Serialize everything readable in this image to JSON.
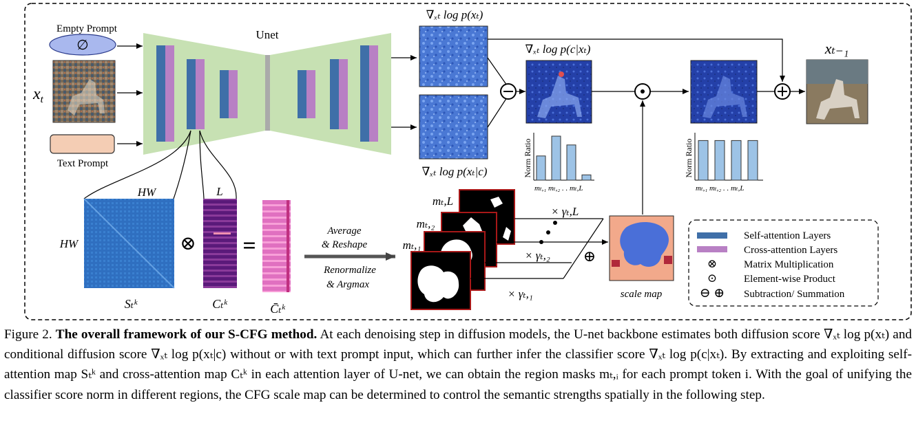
{
  "diagram": {
    "labels": {
      "empty_prompt": "Empty Prompt",
      "empty_symbol": "∅",
      "xt": "x",
      "xt_sub": "t",
      "text_prompt": "Text Prompt",
      "unet": "Unet",
      "score_uncond": "∇ₓₜ log p(xₜ)",
      "score_cond": "∇ₓₜ log p(xₜ|c)",
      "score_class": "∇ₓₜ log p(c|xₜ)",
      "output": "xₜ₋₁",
      "norm_ratio_left": "Norm Ratio",
      "norm_ratio_right": "Norm Ratio",
      "norm_ticks_left": "mₜ,₁ mₜ,₂ . . mₜ,L",
      "norm_ticks_right": "mₜ,₁ mₜ,₂ . . mₜ,L",
      "hw_top": "HW",
      "hw_left": "HW",
      "l_label": "L",
      "s_label": "Sₜᵏ",
      "c_label": "Cₜᵏ",
      "cbar_label": "C̄ₜᵏ",
      "avg_reshape_1": "Average",
      "avg_reshape_2": "& Reshape",
      "renorm_1": "Renormalize",
      "renorm_2": "& Argmax",
      "mask_L": "mₜ,L",
      "mask_2": "mₜ,₂",
      "mask_1": "mₜ,₁",
      "gamma_L": "× γₜ,L",
      "gamma_2": "× γₜ,₂",
      "gamma_1": "× γₜ,₁",
      "scale_map": "scale map",
      "minus_symbol": "⊖",
      "dot_symbol": "⊙",
      "plus_symbol": "⊕",
      "otimes_symbol": "⊗",
      "equals_symbol": "="
    },
    "legend": {
      "self_attention": "Self-attention Layers",
      "cross_attention": "Cross-attention Layers",
      "matmul": "Matrix Multiplication",
      "elementwise": "Element-wise Product",
      "subsum": "Subtraction/ Summation",
      "otimes_symbol": "⊗",
      "odot_symbol": "⊙",
      "ominus_oplus_symbols": "⊖ ⊕",
      "self_color": "#3f6fa8",
      "cross_color": "#b880c4"
    },
    "norm_ratio_left_values": [
      0.55,
      1.0,
      0.8,
      0.12
    ],
    "norm_ratio_right_values": [
      0.9,
      0.9,
      0.9,
      0.9
    ],
    "colors": {
      "unet_fill": "#c7e1b3",
      "self_attention": "#3f6fa8",
      "cross_attention": "#b880c4",
      "empty_prompt_fill": "#a9b8ee",
      "text_prompt_fill": "#f4cdb4",
      "mask_border": "#a81818",
      "scale_map_bg": "#f2a98b",
      "scale_map_blob": "#4a6fd8",
      "bar_fill": "#9dc3e6"
    }
  },
  "caption": {
    "prefix": "Figure 2.",
    "title": "The overall framework of our S-CFG method.",
    "body": "At each denoising step in diffusion models, the U-net backbone estimates both diffusion score ∇ₓₜ log p(xₜ) and conditional diffusion score ∇ₓₜ log p(xₜ|c) without or with text prompt input, which can further infer the classifier score ∇ₓₜ log p(c|xₜ). By extracting and exploiting self-attention map Sₜᵏ and cross-attention map Cₜᵏ in each attention layer of U-net, we can obtain the region masks mₜ,ᵢ for each prompt token i. With the goal of unifying the classifier score norm in different regions, the CFG scale map can be determined to control the semantic strengths spatially in the following step."
  }
}
